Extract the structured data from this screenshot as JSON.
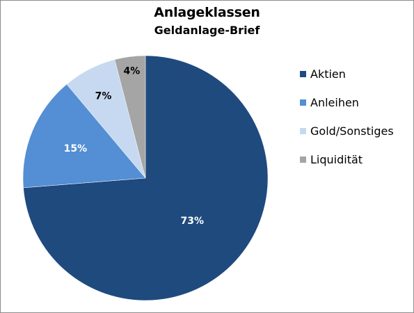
{
  "chart_data": {
    "type": "pie",
    "title": "Anlageklassen",
    "subtitle": "Geldanlage-Brief",
    "categories": [
      "Aktien",
      "Anleihen",
      "Gold/Sonstiges",
      "Liquidität"
    ],
    "values": [
      73,
      15,
      7,
      4
    ],
    "data_labels": [
      "73%",
      "15%",
      "7%",
      "4%"
    ],
    "colors": [
      "#1f4a7e",
      "#548ed4",
      "#c6d9f1",
      "#a5a5a5"
    ],
    "label_colors": [
      "#ffffff",
      "#ffffff",
      "#000000",
      "#000000"
    ],
    "legend_position": "right",
    "start_angle": "12 o'clock",
    "direction": "clockwise"
  }
}
